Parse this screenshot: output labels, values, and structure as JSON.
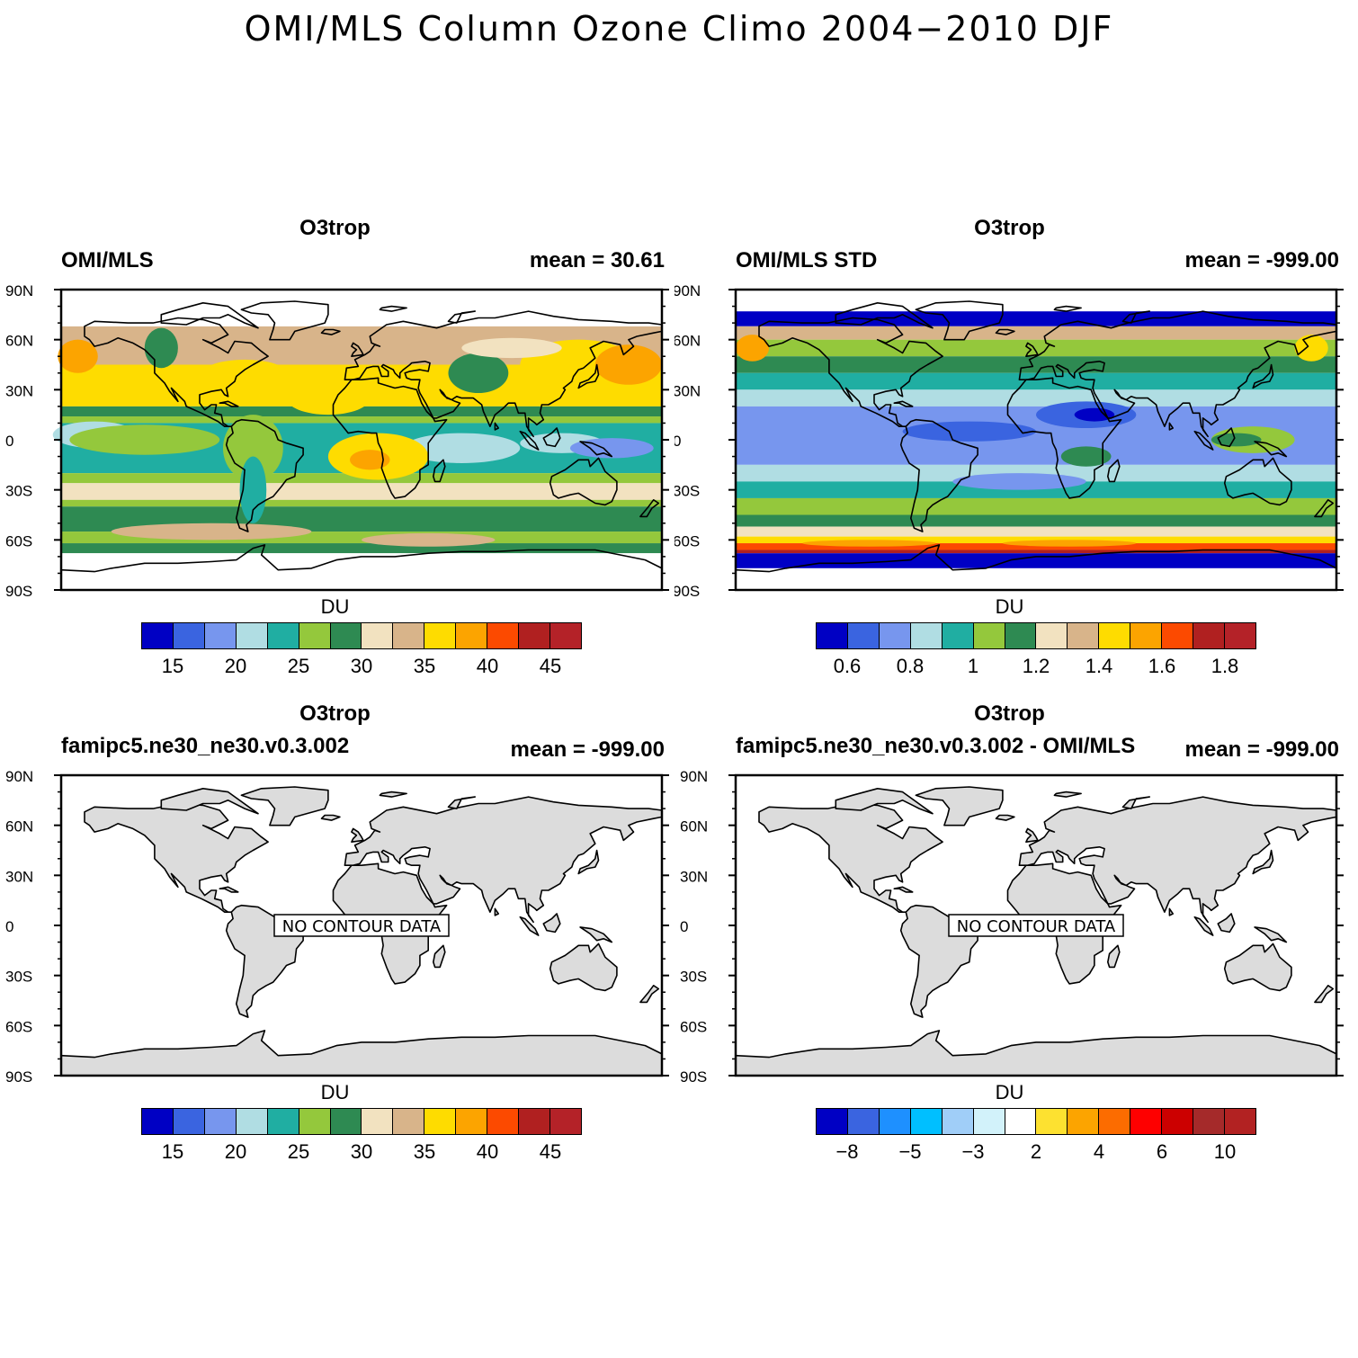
{
  "figure_title": "OMI/MLS Column Ozone Climo 2004−2010 DJF",
  "panels": [
    {
      "title": "O3trop",
      "left_label": "OMI/MLS",
      "right_label": "mean =  30.61",
      "colorbar_label": "DU",
      "ticks": [
        "15",
        "20",
        "25",
        "30",
        "35",
        "40",
        "45"
      ]
    },
    {
      "title": "O3trop",
      "left_label": "OMI/MLS STD",
      "right_label": "mean = -999.00",
      "colorbar_label": "DU",
      "ticks": [
        "0.6",
        "0.8",
        "1",
        "1.2",
        "1.4",
        "1.6",
        "1.8"
      ]
    },
    {
      "title": "O3trop",
      "left_label": "famipc5.ne30_ne30.v0.3.002",
      "right_label": "mean = -999.00",
      "colorbar_label": "DU",
      "ticks": [
        "15",
        "20",
        "25",
        "30",
        "35",
        "40",
        "45"
      ],
      "no_data": "NO CONTOUR DATA"
    },
    {
      "title": "O3trop",
      "left_label": "famipc5.ne30_ne30.v0.3.002 - OMI/MLS",
      "right_label": "mean = -999.00",
      "colorbar_label": "DU",
      "ticks": [
        "−8",
        "−5",
        "−3",
        "2",
        "4",
        "6",
        "10"
      ],
      "no_data": "NO CONTOUR DATA"
    }
  ],
  "lat_labels": [
    "90N",
    "60N",
    "30N",
    "0",
    "30S",
    "60S",
    "90S"
  ],
  "colors": {
    "ozone_scale": [
      "#0000c4",
      "#3a64e0",
      "#7796ee",
      "#b0dde3",
      "#20aea2",
      "#94c83c",
      "#2e8a52",
      "#f2e2c0",
      "#d8b48a",
      "#fedc00",
      "#fca400",
      "#fc4a00",
      "#b02020",
      "#b42228"
    ],
    "diff_scale": [
      "#0000c4",
      "#3a64e0",
      "#1e90ff",
      "#00bfff",
      "#a0cef8",
      "#d2f2fa",
      "#ffffff",
      "#fde130",
      "#fca400",
      "#fc6c00",
      "#fe0000",
      "#cc0000",
      "#a52a2a",
      "#b22222"
    ],
    "land_gray": "#dcdcdc"
  }
}
